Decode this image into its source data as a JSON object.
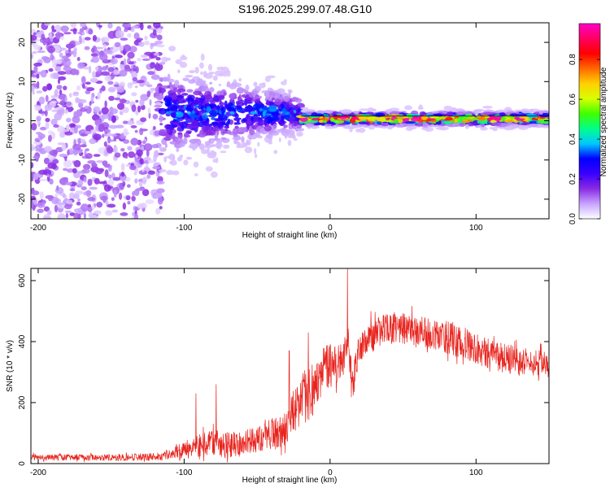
{
  "title": "S196.2025.299.07.48.G10",
  "colors": {
    "axis": "#000000",
    "snr_line": "#e8231d",
    "background": "#ffffff"
  },
  "chart_data": [
    {
      "type": "heatmap",
      "xlabel": "Height of straight line (km)",
      "ylabel": "Frequency (Hz)",
      "xlim": [
        -205,
        150
      ],
      "ylim": [
        -25,
        25
      ],
      "xticks": [
        -200,
        -100,
        0,
        100
      ],
      "xtick_labels": [
        "-200",
        "-100",
        "0",
        "100"
      ],
      "yticks": [
        -20,
        -10,
        0,
        10,
        20
      ],
      "ytick_labels": [
        "-20",
        "-10",
        "0",
        "10",
        "20"
      ],
      "colorbar": {
        "label": "Normalized spectral amplitude",
        "range": [
          0.0,
          0.98
        ],
        "ticks": [
          0.0,
          0.2,
          0.4,
          0.6,
          0.8
        ],
        "tick_labels": [
          "0.0",
          "0.2",
          "0.4",
          "0.6",
          "0.8"
        ],
        "colormap": [
          "#ffffff",
          "#c7a3ff",
          "#8a2be2",
          "#3b00ff",
          "#0000ff",
          "#00c8ff",
          "#00ff8a",
          "#40ff00",
          "#d8ff00",
          "#ffd000",
          "#ff6a00",
          "#ff0000",
          "#ff0060",
          "#ff00c8"
        ]
      },
      "regions": [
        {
          "name": "scattered noise",
          "x_range": [
            -205,
            -115
          ],
          "freq_range": [
            -25,
            25
          ],
          "amplitude": 0.1
        },
        {
          "name": "transition",
          "x_range": [
            -115,
            -20
          ],
          "center_freq": 2,
          "spread_hz": 6,
          "amplitude": 0.25
        },
        {
          "name": "stable carrier",
          "x_range": [
            -20,
            150
          ],
          "center_freq": 0.5,
          "spread_hz": 1,
          "amplitude": 0.8
        }
      ],
      "overlay_line": {
        "label": "straight line fit",
        "x_range": [
          -20,
          150
        ],
        "freq": 1.2
      }
    },
    {
      "type": "line",
      "xlabel": "Height of straight line (km)",
      "ylabel": "SNR (10 * v/v)",
      "xlim": [
        -205,
        150
      ],
      "ylim": [
        0,
        640
      ],
      "xticks": [
        -200,
        -100,
        0,
        100
      ],
      "xtick_labels": [
        "-200",
        "-100",
        "0",
        "100"
      ],
      "yticks": [
        0,
        200,
        400,
        600
      ],
      "ytick_labels": [
        "0",
        "200",
        "400",
        "600"
      ],
      "series": [
        {
          "name": "SNR",
          "envelope": {
            "x": [
              -205,
              -180,
              -150,
              -120,
              -110,
              -100,
              -90,
              -80,
              -70,
              -60,
              -50,
              -40,
              -30,
              -25,
              -20,
              -15,
              -10,
              -5,
              0,
              5,
              10,
              12,
              15,
              20,
              30,
              40,
              50,
              60,
              70,
              80,
              90,
              100,
              110,
              120,
              130,
              140,
              150
            ],
            "mean": [
              20,
              20,
              20,
              22,
              30,
              45,
              60,
              70,
              60,
              65,
              80,
              95,
              115,
              170,
              200,
              240,
              260,
              300,
              320,
              330,
              350,
              420,
              250,
              380,
              420,
              445,
              440,
              435,
              425,
              415,
              400,
              380,
              360,
              345,
              335,
              330,
              325
            ],
            "amp": [
              12,
              12,
              12,
              14,
              18,
              30,
              40,
              45,
              50,
              45,
              50,
              60,
              70,
              90,
              100,
              110,
              110,
              95,
              80,
              70,
              70,
              90,
              70,
              50,
              55,
              60,
              60,
              55,
              55,
              60,
              65,
              60,
              55,
              55,
              55,
              50,
              50
            ]
          },
          "spikes": [
            {
              "x": -92,
              "y": 230
            },
            {
              "x": -78,
              "y": 260
            },
            {
              "x": -28,
              "y": 370
            },
            {
              "x": -15,
              "y": 430
            },
            {
              "x": 12,
              "y": 640
            },
            {
              "x": 28,
              "y": 500
            }
          ]
        }
      ]
    }
  ]
}
